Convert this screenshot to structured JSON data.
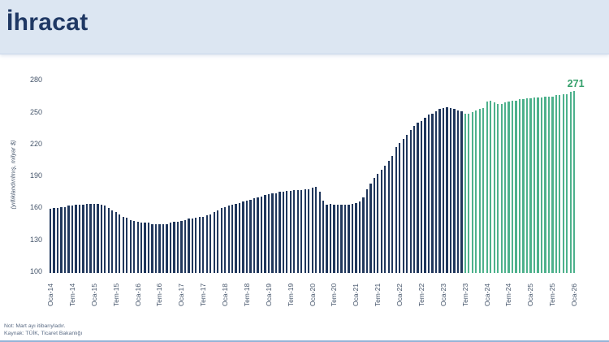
{
  "header": {
    "title": "İhracat"
  },
  "footer": {
    "note": "Not: Mart ayı itibarıyladır.",
    "source": "Kaynak: TÜİK, Ticaret Bakanlığı"
  },
  "colors": {
    "header_bg": "#dce6f2",
    "title_text": "#1f3864",
    "actual_bar": "#20375c",
    "forecast_bar": "#4db18c",
    "annotation_text": "#35a06b",
    "axis_text": "#44546a",
    "bottom_line": "#95b3d7"
  },
  "chart_data": {
    "type": "bar",
    "title": "İhracat",
    "subtitle": "",
    "xlabel": "",
    "ylabel": "(yıllıklandırılmış, milyar $)",
    "ylim": [
      100,
      280
    ],
    "yticks": [
      100,
      130,
      160,
      190,
      220,
      250,
      280
    ],
    "grid": false,
    "legend": "none",
    "frequency": "monthly",
    "x_start": "Oca-14",
    "x_end": "Oca-26",
    "tick_every": 6,
    "x_tick_labels": [
      "Oca-14",
      "Tem-14",
      "Oca-15",
      "Tem-15",
      "Oca-16",
      "Tem-16",
      "Oca-17",
      "Tem-17",
      "Oca-18",
      "Tem-18",
      "Oca-19",
      "Tem-19",
      "Oca-20",
      "Tem-20",
      "Oca-21",
      "Tem-21",
      "Oca-22",
      "Tem-22",
      "Oca-23",
      "Tem-23",
      "Oca-24",
      "Tem-24",
      "Oca-25",
      "Tem-25",
      "Oca-26"
    ],
    "series_names": [
      "actual",
      "forecast"
    ],
    "forecast_start_index": 114,
    "values": [
      160,
      161,
      161,
      162,
      162,
      163,
      163,
      164,
      164,
      164,
      165,
      165,
      165,
      165,
      164,
      163,
      161,
      159,
      157,
      155,
      153,
      152,
      150,
      149,
      148,
      147,
      147,
      147,
      146,
      146,
      146,
      146,
      146,
      147,
      148,
      148,
      149,
      150,
      151,
      151,
      152,
      153,
      153,
      154,
      155,
      157,
      159,
      161,
      162,
      163,
      164,
      165,
      166,
      167,
      168,
      169,
      170,
      171,
      172,
      173,
      174,
      175,
      175,
      176,
      176,
      177,
      177,
      178,
      178,
      178,
      179,
      179,
      180,
      181,
      176,
      168,
      164,
      165,
      164,
      164,
      164,
      164,
      164,
      165,
      166,
      167,
      171,
      179,
      184,
      189,
      193,
      197,
      201,
      205,
      210,
      218,
      222,
      226,
      230,
      234,
      238,
      241,
      243,
      246,
      249,
      250,
      252,
      254,
      255,
      256,
      255,
      254,
      253,
      252,
      250,
      250,
      251,
      253,
      254,
      255,
      261,
      262,
      260,
      259,
      259,
      260,
      261,
      262,
      262,
      263,
      263,
      264,
      264,
      265,
      265,
      265,
      266,
      266,
      266,
      267,
      267,
      268,
      268,
      270,
      271
    ],
    "annotation": {
      "label": "271",
      "index": 144,
      "value": 271
    }
  }
}
